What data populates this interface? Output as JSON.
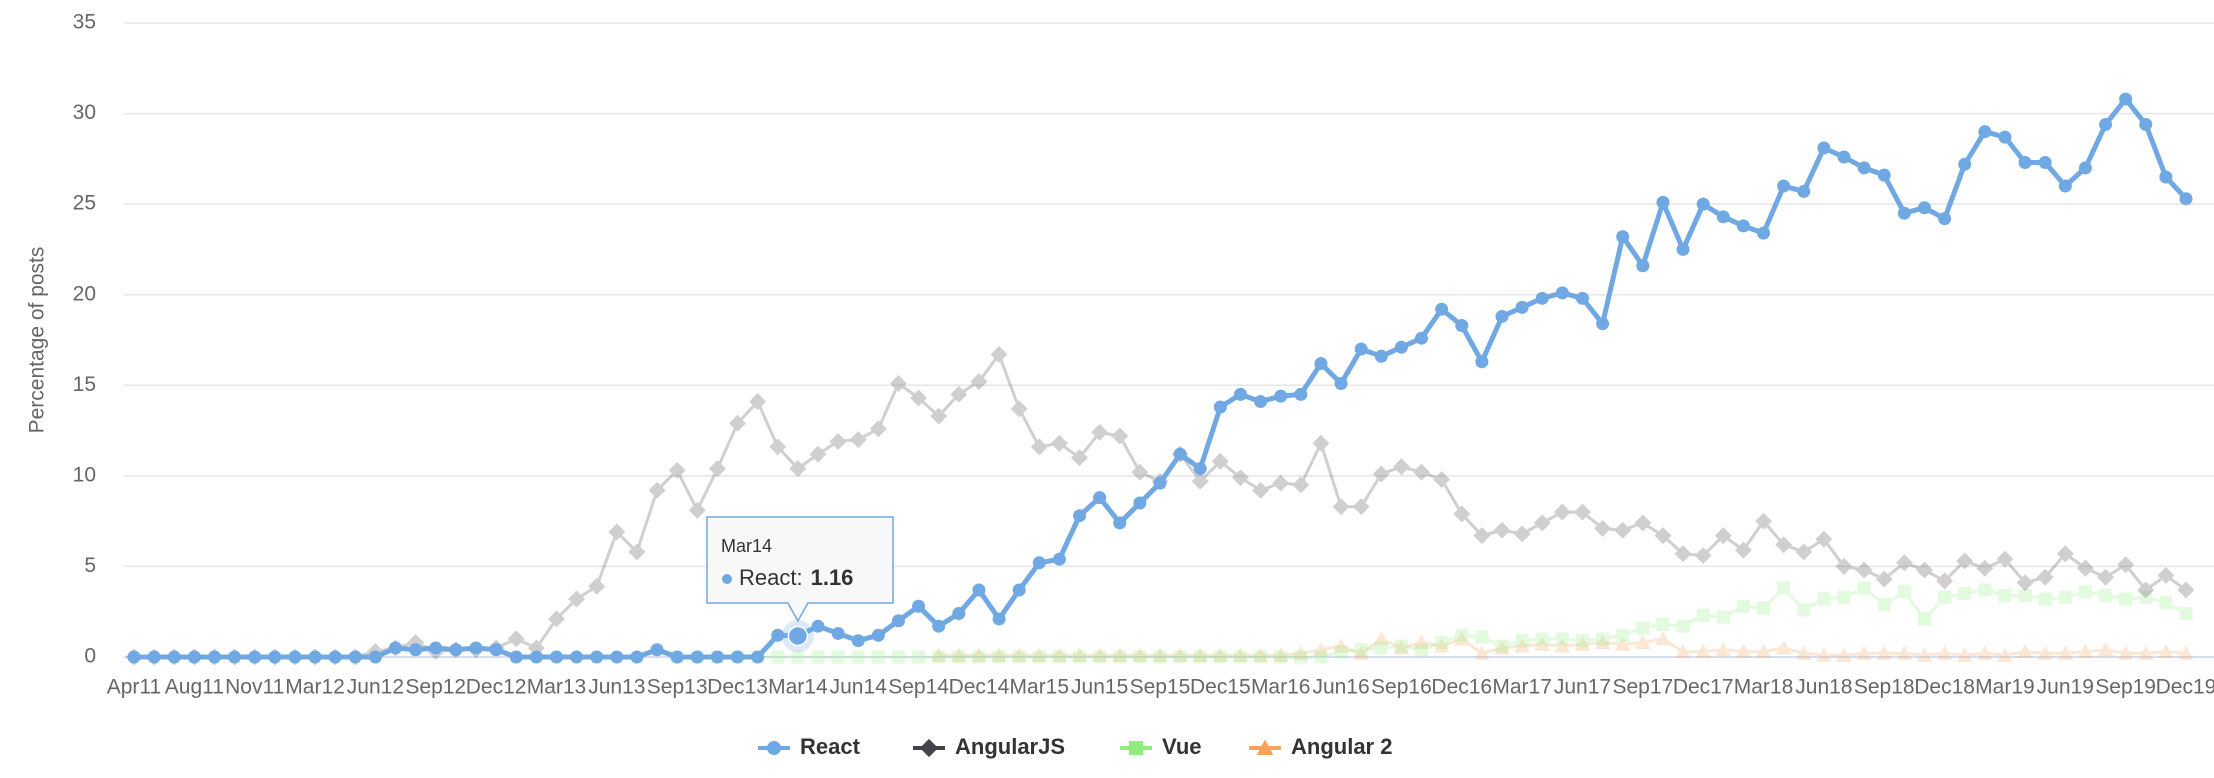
{
  "chart_data": {
    "type": "line",
    "y_label": "Percentage of posts",
    "ylim": [
      0,
      35
    ],
    "yticks": [
      0,
      5,
      10,
      15,
      20,
      25,
      30,
      35
    ],
    "grid": true,
    "legend": "bottom",
    "categories": [
      "Apr11",
      null,
      null,
      "Aug11",
      null,
      null,
      "Nov11",
      null,
      null,
      "Mar12",
      null,
      null,
      "Jun12",
      null,
      null,
      "Sep12",
      null,
      null,
      "Dec12",
      null,
      null,
      "Mar13",
      null,
      null,
      "Jun13",
      null,
      null,
      "Sep13",
      null,
      null,
      "Dec13",
      null,
      null,
      "Mar14",
      null,
      null,
      "Jun14",
      null,
      null,
      "Sep14",
      null,
      null,
      "Dec14",
      null,
      null,
      "Mar15",
      null,
      null,
      "Jun15",
      null,
      null,
      "Sep15",
      null,
      null,
      "Dec15",
      null,
      null,
      "Mar16",
      null,
      null,
      "Jun16",
      null,
      null,
      "Sep16",
      null,
      null,
      "Dec16",
      null,
      null,
      "Mar17",
      null,
      null,
      "Jun17",
      null,
      null,
      "Sep17",
      null,
      null,
      "Dec17",
      null,
      null,
      "Mar18",
      null,
      null,
      "Jun18",
      null,
      null,
      "Sep18",
      null,
      null,
      "Dec18",
      null,
      null,
      "Mar19",
      null,
      null,
      "Jun19",
      null,
      null,
      "Sep19",
      null,
      null,
      "Dec19"
    ],
    "series": [
      {
        "name": "React",
        "color": "#6fa8e3",
        "marker": "circle",
        "values": [
          0,
          0,
          0,
          0,
          0,
          0,
          0,
          0,
          0,
          0,
          0,
          0,
          0,
          0.5,
          0.4,
          0.5,
          0.4,
          0.5,
          0.4,
          0,
          0,
          0,
          0,
          0,
          0,
          0,
          0.4,
          0,
          0,
          0,
          0,
          0,
          1.2,
          1.16,
          1.7,
          1.3,
          0.9,
          1.2,
          2.0,
          2.8,
          1.7,
          2.4,
          3.7,
          2.1,
          3.7,
          5.2,
          5.4,
          7.8,
          8.8,
          7.4,
          8.5,
          9.6,
          11.2,
          10.4,
          13.8,
          14.5,
          14.1,
          14.4,
          14.5,
          16.2,
          15.1,
          17.0,
          16.6,
          17.1,
          17.6,
          19.2,
          18.3,
          16.3,
          18.8,
          19.3,
          19.8,
          20.1,
          19.8,
          18.4,
          23.2,
          21.6,
          25.1,
          22.5,
          25.0,
          24.3,
          23.8,
          23.4,
          26.0,
          25.7,
          28.1,
          27.6,
          27.0,
          26.6,
          24.5,
          24.8,
          24.2,
          27.2,
          29.0,
          28.7,
          27.3,
          27.3,
          26.0,
          27.0,
          29.4,
          30.8,
          29.4,
          26.5,
          25.3
        ]
      },
      {
        "name": "AngularJS",
        "color": "#434348",
        "marker": "diamond",
        "values": [
          0,
          0,
          0,
          0,
          0,
          0,
          0,
          0,
          0,
          0,
          0,
          0,
          0.3,
          0.5,
          0.8,
          0.3,
          0.4,
          0.4,
          0.5,
          1.0,
          0.5,
          2.1,
          3.2,
          3.9,
          6.9,
          5.8,
          9.2,
          10.3,
          8.1,
          10.4,
          12.9,
          14.1,
          11.6,
          10.4,
          11.2,
          11.9,
          12.0,
          12.6,
          15.1,
          14.3,
          13.3,
          14.5,
          15.2,
          16.7,
          13.7,
          11.6,
          11.8,
          11.0,
          12.4,
          12.2,
          10.2,
          9.7,
          11.2,
          9.7,
          10.8,
          9.9,
          9.2,
          9.6,
          9.5,
          11.8,
          8.3,
          8.3,
          10.1,
          10.5,
          10.2,
          9.8,
          7.9,
          6.7,
          7.0,
          6.8,
          7.4,
          8.0,
          8.0,
          7.1,
          7.0,
          7.4,
          6.7,
          5.7,
          5.6,
          6.7,
          5.9,
          7.5,
          6.2,
          5.8,
          6.5,
          5.0,
          4.8,
          4.3,
          5.2,
          4.8,
          4.2,
          5.3,
          4.9,
          5.4,
          4.1,
          4.4,
          5.7,
          4.9,
          4.4,
          5.1,
          3.7,
          4.5,
          3.7
        ]
      },
      {
        "name": "Vue",
        "color": "#90ed7d",
        "marker": "square",
        "values": [
          null,
          null,
          null,
          null,
          null,
          null,
          null,
          null,
          null,
          null,
          null,
          null,
          null,
          null,
          null,
          null,
          null,
          null,
          null,
          null,
          null,
          null,
          null,
          null,
          null,
          null,
          null,
          0,
          0,
          0,
          0,
          0,
          0,
          0,
          0,
          0,
          0,
          0,
          0,
          0,
          0,
          0,
          0,
          0,
          0,
          0,
          0,
          0,
          0,
          0,
          0,
          0,
          0,
          0,
          0,
          0,
          0,
          0,
          0,
          0,
          0.3,
          0.4,
          0.5,
          0.6,
          0.4,
          0.8,
          1.2,
          1.1,
          0.6,
          0.9,
          1.0,
          1.0,
          0.9,
          1.0,
          1.2,
          1.6,
          1.8,
          1.7,
          2.3,
          2.2,
          2.8,
          2.7,
          3.8,
          2.6,
          3.2,
          3.3,
          3.8,
          2.9,
          3.6,
          2.1,
          3.3,
          3.5,
          3.7,
          3.4,
          3.4,
          3.2,
          3.3,
          3.6,
          3.4,
          3.2,
          3.3,
          3.0,
          2.4
        ]
      },
      {
        "name": "Angular 2",
        "color": "#f7a35c",
        "marker": "triangle",
        "values": [
          null,
          null,
          null,
          null,
          null,
          null,
          null,
          null,
          null,
          null,
          null,
          null,
          null,
          null,
          null,
          null,
          null,
          null,
          null,
          null,
          null,
          null,
          null,
          null,
          null,
          null,
          null,
          null,
          null,
          null,
          null,
          null,
          null,
          null,
          null,
          null,
          null,
          null,
          null,
          null,
          0.1,
          0.1,
          0.1,
          0.1,
          0.1,
          0.1,
          0.1,
          0.1,
          0.1,
          0.1,
          0.1,
          0.1,
          0.1,
          0.1,
          0.1,
          0.1,
          0.1,
          0.1,
          0.2,
          0.4,
          0.6,
          0.2,
          1.0,
          0.5,
          0.8,
          0.6,
          1.0,
          0.2,
          0.5,
          0.6,
          0.7,
          0.6,
          0.7,
          0.8,
          0.7,
          0.8,
          1.0,
          0.3,
          0.3,
          0.4,
          0.3,
          0.3,
          0.5,
          0.2,
          0.1,
          0.1,
          0.2,
          0.2,
          0.2,
          0.1,
          0.2,
          0.1,
          0.2,
          0.1,
          0.3,
          0.2,
          0.2,
          0.3,
          0.4,
          0.2,
          0.2,
          0.3,
          0.2
        ]
      }
    ],
    "tooltip": {
      "series": 0,
      "index": 33,
      "title": "Mar14",
      "text": "React:",
      "value": 1.16
    }
  }
}
